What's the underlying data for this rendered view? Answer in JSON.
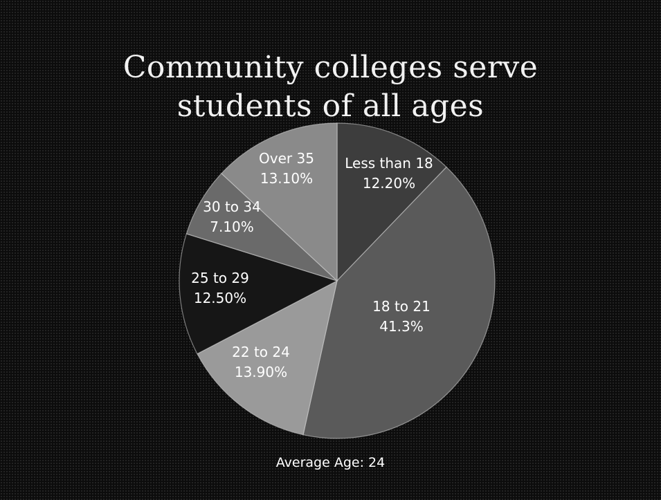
{
  "chart_data": {
    "type": "pie",
    "title_lines": [
      "Community colleges serve",
      "students of all ages"
    ],
    "slices": [
      {
        "category": "Less than 18",
        "label": "12.20%",
        "value": 12.2,
        "color": "#3d3d3d"
      },
      {
        "category": "18 to 21",
        "label": "41.3%",
        "value": 41.3,
        "color": "#5a5a5a"
      },
      {
        "category": "22 to 24",
        "label": "13.90%",
        "value": 13.9,
        "color": "#9a9a9a"
      },
      {
        "category": "25 to 29",
        "label": "12.50%",
        "value": 12.5,
        "color": "#161616"
      },
      {
        "category": "30 to 34",
        "label": "7.10%",
        "value": 7.1,
        "color": "#6a6a6a"
      },
      {
        "category": "Over 35",
        "label": "13.10%",
        "value": 13.1,
        "color": "#8a8a8a"
      }
    ],
    "start": "top, clockwise"
  },
  "footer_text": "Average Age: 24"
}
